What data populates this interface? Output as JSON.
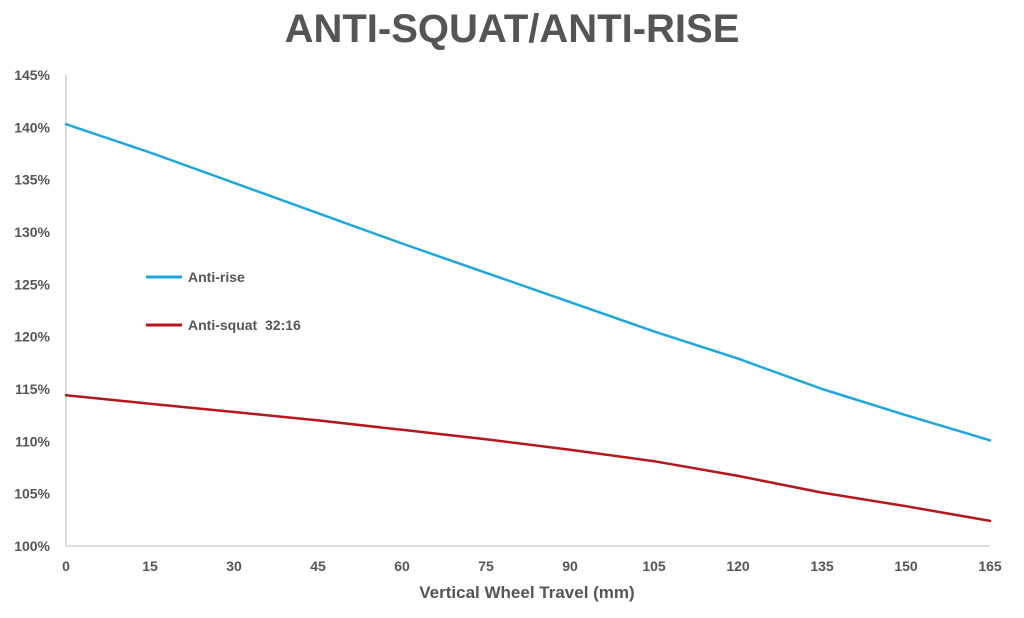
{
  "chart_data": {
    "type": "line",
    "title": "ANTI-SQUAT/ANTI-RISE",
    "xlabel": "Vertical Wheel Travel (mm)",
    "ylabel": "",
    "xlim": [
      0,
      165
    ],
    "ylim": [
      100,
      145
    ],
    "x_ticks": [
      0,
      15,
      30,
      45,
      60,
      75,
      90,
      105,
      120,
      135,
      150,
      165
    ],
    "y_ticks": [
      100,
      105,
      110,
      115,
      120,
      125,
      130,
      135,
      140,
      145
    ],
    "y_tick_labels": [
      "100%",
      "105%",
      "110%",
      "115%",
      "120%",
      "125%",
      "130%",
      "135%",
      "140%",
      "145%"
    ],
    "x": [
      0,
      15,
      30,
      45,
      60,
      75,
      90,
      105,
      120,
      135,
      150,
      165
    ],
    "grid": false,
    "legend_position": "left-center",
    "series": [
      {
        "name": "Anti-rise",
        "color": "#1ea7dc",
        "values": [
          140.3,
          137.6,
          134.7,
          131.8,
          128.9,
          126.1,
          123.3,
          120.5,
          117.9,
          115.0,
          112.5,
          110.1
        ]
      },
      {
        "name": "Anti-squat  32:16",
        "color": "#b5161a",
        "values": [
          114.4,
          113.6,
          112.8,
          112.0,
          111.1,
          110.2,
          109.2,
          108.1,
          106.7,
          105.1,
          103.8,
          102.4
        ]
      }
    ]
  }
}
